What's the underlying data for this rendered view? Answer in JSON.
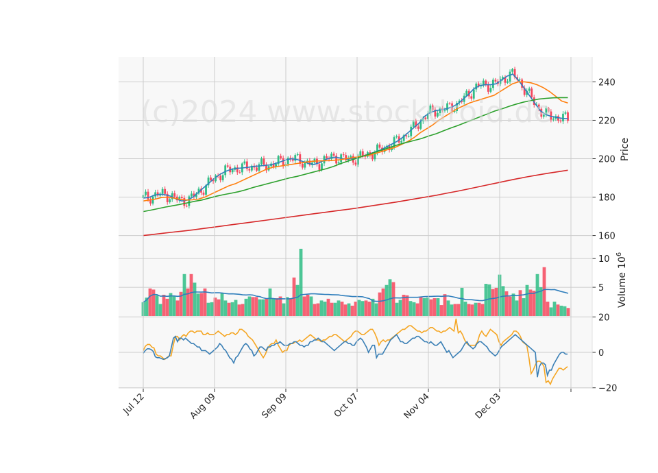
{
  "watermark": "(c)2024 www.stockdroid.de",
  "colors": {
    "up": "#2ebd85",
    "down": "#f6465d",
    "ma_blue": "#2f7ebc",
    "ma_orange": "#ff7f0e",
    "ma_green": "#2ca02c",
    "ma_red": "#d62728",
    "osc_orange": "#f5a623",
    "osc_blue": "#3a7fb5",
    "panel_bg": "#f8f8f8",
    "grid": "#cccccc"
  },
  "chart_data": [
    {
      "type": "candlestick",
      "panel": "price",
      "ylabel": "Price",
      "ylim": [
        157,
        253
      ],
      "yticks": [
        160,
        180,
        200,
        220,
        240
      ],
      "xticks": [
        "Jul 12",
        "Aug 09",
        "Sep 09",
        "Oct 07",
        "Nov 04",
        "Dec 03"
      ],
      "start_date": "Jul 12",
      "series": [
        {
          "type": "line",
          "color": "blue",
          "values": [
            179.5,
            179.8,
            181.0,
            181.5,
            181.2,
            180.5,
            179.0,
            178.0,
            178.5,
            180.0,
            182.5,
            185.0,
            187.5,
            190.0,
            192.0,
            193.5,
            194.5,
            195.0,
            195.2,
            195.5,
            196.0,
            196.2,
            196.5,
            196.8,
            197.5,
            198.5,
            199.5,
            200.0,
            199.5,
            198.5,
            197.5,
            197.0,
            198.0,
            199.5,
            200.5,
            200.8,
            200.2,
            199.8,
            200.0,
            200.5,
            201.5,
            202.5,
            203.5,
            204.5,
            206.0,
            207.5,
            209.0,
            211.0,
            213.5,
            216.0,
            218.5,
            222.0,
            224.0,
            225.0,
            225.5,
            226.0,
            227.0,
            228.5,
            231.0,
            233.5,
            236.5,
            238.0,
            238.5,
            238.5,
            239.0,
            241.0,
            243.0,
            244.0,
            241.0,
            237.0,
            233.0,
            229.0,
            225.0,
            223.0,
            222.0,
            221.5,
            221.0,
            220.8
          ]
        },
        {
          "type": "line",
          "color": "orange",
          "values": [
            178.0,
            178.5,
            179.0,
            179.8,
            180.0,
            179.5,
            178.8,
            178.5,
            178.6,
            179.0,
            180.0,
            181.5,
            183.0,
            184.5,
            186.0,
            187.0,
            188.5,
            190.0,
            191.5,
            193.0,
            194.5,
            195.5,
            196.0,
            196.5,
            197.0,
            197.5,
            198.0,
            198.5,
            198.8,
            198.9,
            199.0,
            199.2,
            199.5,
            200.0,
            200.5,
            201.0,
            201.5,
            202.0,
            203.0,
            204.0,
            205.0,
            206.0,
            207.5,
            209.0,
            211.0,
            213.5,
            215.5,
            217.5,
            220.0,
            222.0,
            224.0,
            226.0,
            227.5,
            229.0,
            230.0,
            231.0,
            232.0,
            233.0,
            235.0,
            237.0,
            239.0,
            240.0,
            240.0,
            239.5,
            238.5,
            237.0,
            235.0,
            232.5,
            230.0,
            229.0
          ]
        },
        {
          "type": "line",
          "color": "green",
          "values": [
            172.5,
            173.2,
            174.0,
            174.8,
            175.5,
            176.2,
            177.0,
            177.8,
            178.5,
            179.5,
            180.5,
            181.3,
            182.0,
            182.8,
            183.8,
            185.0,
            186.0,
            187.0,
            188.0,
            189.0,
            190.0,
            190.8,
            191.8,
            192.8,
            193.8,
            194.8,
            196.0,
            197.5,
            198.8,
            200.0,
            201.3,
            202.5,
            203.8,
            205.0,
            206.3,
            207.5,
            208.5,
            209.5,
            210.5,
            211.8,
            213.0,
            214.5,
            216.0,
            217.3,
            218.8,
            220.3,
            221.8,
            223.3,
            224.8,
            226.0,
            227.3,
            228.5,
            229.5,
            230.3,
            231.0,
            231.4,
            231.7,
            231.8,
            231.8
          ]
        },
        {
          "type": "line",
          "color": "red",
          "values": [
            160.0,
            160.6,
            161.2,
            161.8,
            162.4,
            163.0,
            163.7,
            164.4,
            165.1,
            165.8,
            166.5,
            167.2,
            167.9,
            168.6,
            169.3,
            170.0,
            170.7,
            171.4,
            172.1,
            172.8,
            173.5,
            174.2,
            175.0,
            175.8,
            176.6,
            177.4,
            178.3,
            179.2,
            180.1,
            181.0,
            182.0,
            183.0,
            184.1,
            185.2,
            186.3,
            187.4,
            188.5,
            189.6,
            190.6,
            191.5,
            192.4,
            193.2,
            194.0
          ]
        }
      ]
    },
    {
      "type": "bar",
      "panel": "volume",
      "ylabel": "Volume",
      "yunit": "10^6",
      "ylim": [
        0,
        13
      ],
      "yticks": [
        5,
        10
      ],
      "values": [
        2.4,
        3.2,
        4.8,
        4.6,
        3.6,
        2.1,
        3.7,
        3.0,
        4.0,
        3.5,
        2.7,
        4.2,
        7.3,
        4.8,
        7.3,
        5.8,
        3.9,
        4.0,
        4.8,
        2.3,
        2.4,
        3.2,
        2.9,
        4.0,
        2.7,
        2.3,
        2.4,
        2.8,
        2.0,
        2.1,
        3.0,
        3.4,
        3.3,
        3.3,
        2.9,
        2.9,
        3.0,
        4.8,
        3.1,
        3.1,
        3.4,
        2.2,
        3.3,
        3.1,
        6.7,
        5.4,
        11.7,
        3.4,
        3.7,
        3.4,
        2.1,
        2.2,
        2.7,
        2.5,
        3.0,
        2.3,
        2.3,
        2.7,
        2.5,
        2.0,
        2.2,
        1.8,
        2.5,
        2.8,
        2.6,
        2.7,
        2.5,
        3.0,
        2.2,
        4.1,
        4.8,
        5.4,
        6.4,
        5.9,
        2.3,
        2.8,
        3.7,
        3.6,
        2.6,
        2.4,
        2.2,
        3.3,
        3.1,
        3.2,
        2.9,
        3.1,
        3.1,
        1.9,
        3.8,
        2.7,
        2.0,
        2.1,
        2.1,
        4.9,
        2.5,
        2.1,
        2.0,
        2.3,
        2.3,
        2.1,
        5.6,
        5.5,
        4.7,
        4.9,
        7.2,
        5.2,
        4.3,
        3.4,
        3.9,
        2.7,
        4.5,
        3.1,
        5.4,
        4.6,
        4.4,
        7.3,
        5.0,
        8.5,
        2.5,
        1.5,
        2.5,
        2.0,
        1.8,
        1.7,
        1.4
      ]
    },
    {
      "type": "line",
      "panel": "oscillator",
      "ylim": [
        -20.5,
        20.5
      ],
      "yticks": [
        -20,
        0,
        20
      ],
      "series": [
        {
          "color": "orange",
          "values": [
            1,
            3.5,
            4.5,
            4.5,
            3,
            2.5,
            -1,
            -2,
            -2,
            -3,
            -4,
            -3,
            -2,
            -2,
            4,
            9,
            9,
            7,
            9,
            10,
            9,
            11,
            12,
            12,
            11,
            12,
            12,
            12,
            10,
            10,
            11,
            10,
            10,
            10,
            11,
            12,
            11,
            10,
            9,
            10,
            10,
            11,
            11,
            10,
            11,
            13,
            13,
            12,
            11,
            9,
            8,
            7,
            5,
            3,
            1,
            -1,
            -3,
            -1,
            2,
            4,
            5,
            5,
            7,
            4,
            2,
            0,
            1,
            1,
            4,
            5,
            5,
            6,
            6,
            7,
            6,
            7,
            8,
            9,
            10,
            9,
            8,
            7,
            7,
            6,
            7,
            7,
            8,
            9,
            9,
            10,
            10,
            9,
            8,
            7,
            6,
            7,
            8,
            9,
            11,
            12,
            12,
            11,
            10,
            10,
            11,
            12,
            13,
            13,
            11,
            8,
            4,
            6,
            7,
            6,
            7,
            7,
            8,
            9,
            10,
            11,
            12,
            13,
            13,
            14,
            15,
            15,
            14,
            13,
            12,
            12,
            11,
            12,
            12,
            13,
            14,
            14,
            13,
            12,
            12,
            11,
            12,
            12,
            13,
            14,
            13,
            12,
            19,
            11,
            12,
            10,
            7,
            5,
            4,
            4,
            4,
            4,
            6,
            10,
            12,
            10,
            9,
            11,
            13,
            12,
            11,
            10,
            6,
            4,
            6,
            7,
            8,
            9,
            10,
            12,
            12,
            11,
            9,
            6,
            5,
            4,
            -3,
            -12,
            -10,
            -7,
            -5,
            -5,
            -6,
            -8,
            -17,
            -16,
            -18,
            -15,
            -13,
            -11,
            -9,
            -9,
            -10,
            -9,
            -8
          ]
        },
        {
          "color": "blue",
          "values": [
            -0.5,
            1,
            2,
            2,
            1.5,
            0.5,
            -2.5,
            -3,
            -3,
            -3.5,
            -4,
            -3.5,
            -3,
            -2,
            3,
            8,
            9,
            6,
            8,
            8,
            7,
            8,
            7,
            6,
            5,
            5,
            4,
            3,
            3,
            1,
            1,
            1,
            0,
            -1,
            0,
            1,
            2,
            3,
            5,
            4,
            2,
            1,
            -1,
            -3,
            -4,
            -6,
            -3,
            -2,
            0,
            2,
            4,
            5,
            4,
            2,
            1,
            -2,
            -1,
            1,
            3,
            3,
            2,
            1,
            3,
            3,
            4,
            4,
            5,
            5,
            6,
            5,
            4,
            4,
            4,
            5,
            5,
            6,
            6,
            5,
            4,
            4,
            3,
            4,
            4,
            6,
            6,
            7,
            7,
            8,
            7,
            6,
            6,
            5,
            4,
            3,
            2,
            1,
            2,
            3,
            4,
            5,
            6,
            6,
            5,
            5,
            4,
            4,
            6,
            7,
            8,
            7,
            5,
            3,
            0,
            2,
            4,
            4,
            -3,
            -1,
            -1,
            -1,
            1,
            3,
            5,
            7,
            8,
            9,
            10,
            8,
            6,
            6,
            5,
            5,
            6,
            7,
            8,
            8,
            9,
            9,
            8,
            7,
            6,
            6,
            5,
            6,
            5,
            4,
            4,
            5,
            6,
            4,
            2,
            0,
            1,
            -1,
            -3,
            -2,
            -1,
            0,
            1,
            3,
            5,
            6,
            4,
            3,
            2,
            3,
            5,
            6,
            6,
            5,
            4,
            3,
            1,
            0,
            -1,
            -2,
            -1,
            1,
            3,
            4,
            5,
            6,
            7,
            8,
            9,
            10,
            9,
            8,
            7,
            6,
            5,
            4,
            3,
            2,
            1,
            0,
            -14,
            -8,
            -6,
            -6,
            -7,
            -13,
            -10,
            -10,
            -7,
            -5,
            -3,
            -1,
            0,
            0,
            -1,
            -1
          ]
        }
      ]
    }
  ]
}
